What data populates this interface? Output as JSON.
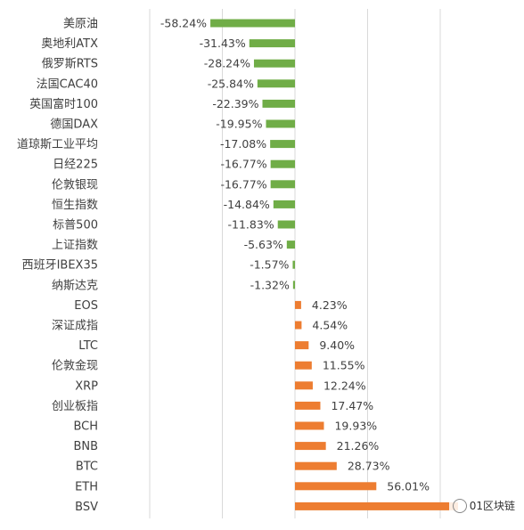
{
  "chart_data": {
    "type": "bar",
    "orientation": "horizontal",
    "categories": [
      "美原油",
      "奥地利ATX",
      "俄罗斯RTS",
      "法国CAC40",
      "英国富时100",
      "德国DAX",
      "道琼斯工业平均",
      "日经225",
      "伦敦银现",
      "恒生指数",
      "标普500",
      "上证指数",
      "西班牙IBEX35",
      "纳斯达克",
      "EOS",
      "深证成指",
      "LTC",
      "伦敦金现",
      "XRP",
      "创业板指",
      "BCH",
      "BNB",
      "BTC",
      "ETH",
      "BSV"
    ],
    "values": [
      -58.24,
      -31.43,
      -28.24,
      -25.84,
      -22.39,
      -19.95,
      -17.08,
      -16.77,
      -16.77,
      -14.84,
      -11.83,
      -5.63,
      -1.57,
      -1.32,
      4.23,
      4.54,
      9.4,
      11.55,
      12.24,
      17.47,
      19.93,
      21.26,
      28.73,
      56.01,
      null
    ],
    "value_labels": [
      "-58.24%",
      "-31.43%",
      "-28.24%",
      "-25.84%",
      "-22.39%",
      "-19.95%",
      "-17.08%",
      "-16.77%",
      "-16.77%",
      "-14.84%",
      "-11.83%",
      "-5.63%",
      "-1.57%",
      "-1.32%",
      "4.23%",
      "4.54%",
      "9.40%",
      "11.55%",
      "12.24%",
      "17.47%",
      "19.93%",
      "21.26%",
      "28.73%",
      "56.01%",
      ""
    ],
    "xlim": [
      -100,
      100
    ],
    "grid": true,
    "colors": {
      "negative": "#70AD47",
      "positive": "#ED7D31",
      "grid": "#D9D9D9",
      "text": "#404040"
    }
  },
  "watermark": {
    "text": "01区块链"
  }
}
